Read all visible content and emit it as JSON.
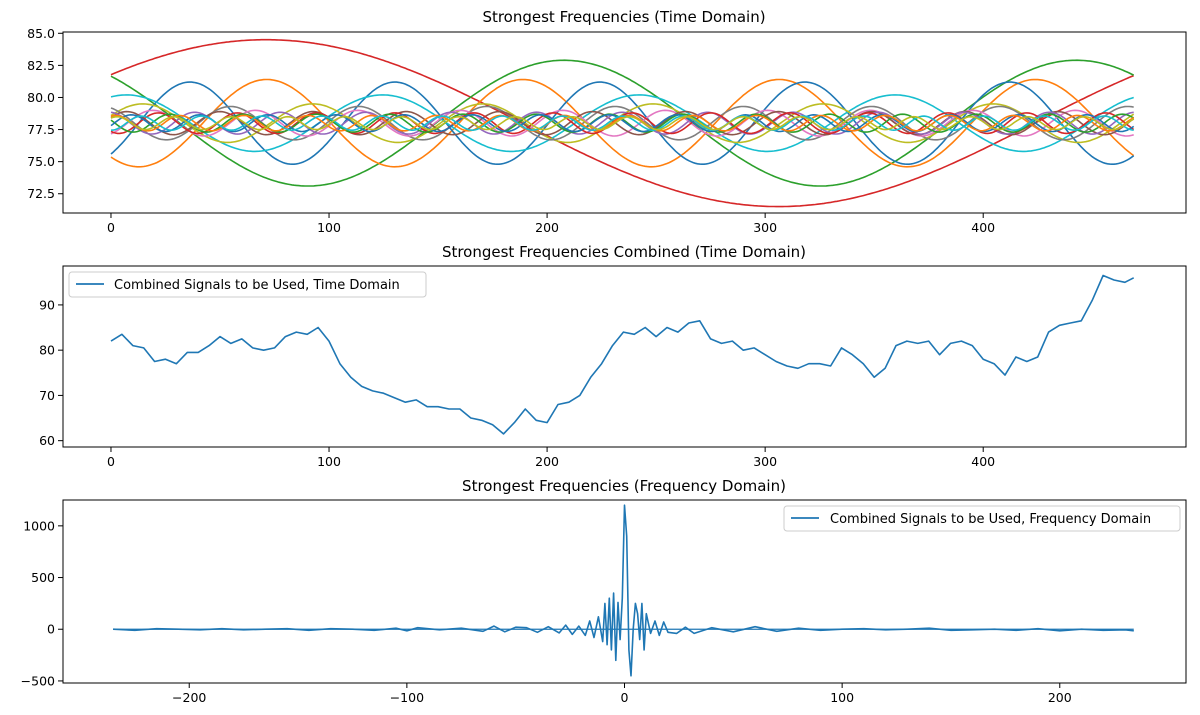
{
  "chart_data": [
    {
      "type": "line",
      "title": "Strongest Frequencies (Time Domain)",
      "xlim": [
        -22,
        493
      ],
      "ylim": [
        71,
        85.1
      ],
      "xticks": [
        0,
        100,
        200,
        300,
        400
      ],
      "yticks": [
        72.5,
        75.0,
        77.5,
        80.0,
        82.5,
        85.0
      ],
      "ytick_labels": [
        "72.5",
        "75.0",
        "77.5",
        "80.0",
        "82.5",
        "85.0"
      ],
      "n_samples": 470,
      "series_colors": [
        "#1f77b4",
        "#ff7f0e",
        "#2ca02c",
        "#d62728",
        "#9467bd",
        "#8c564b",
        "#e377c2",
        "#7f7f7f",
        "#bcbd22",
        "#17becf"
      ],
      "components": [
        {
          "mean": 78.0,
          "amp": 6.5,
          "period": 470,
          "phase": 0.62,
          "color": "#d62728"
        },
        {
          "mean": 78.0,
          "amp": 4.9,
          "period": 235,
          "phase": 2.3,
          "color": "#2ca02c"
        },
        {
          "mean": 78.0,
          "amp": 3.4,
          "period": 117.5,
          "phase": -2.25,
          "color": "#ff7f0e"
        },
        {
          "mean": 78.0,
          "amp": 3.2,
          "period": 94,
          "phase": -0.85,
          "color": "#1f77b4"
        },
        {
          "mean": 78.0,
          "amp": 2.2,
          "period": 117.5,
          "phase": 1.19,
          "color": "#17becf"
        },
        {
          "mean": 78.0,
          "amp": 1.5,
          "period": 78,
          "phase": 0.4,
          "color": "#bcbd22"
        },
        {
          "mean": 78.0,
          "amp": 1.3,
          "period": 58.8,
          "phase": 2.0,
          "color": "#7f7f7f"
        },
        {
          "mean": 78.0,
          "amp": 1.0,
          "period": 47,
          "phase": -1.0,
          "color": "#e377c2"
        },
        {
          "mean": 78.0,
          "amp": 0.9,
          "period": 42.7,
          "phase": 0.5,
          "color": "#8c564b"
        },
        {
          "mean": 78.0,
          "amp": 0.85,
          "period": 39.2,
          "phase": 1.7,
          "color": "#9467bd"
        },
        {
          "mean": 78.0,
          "amp": 0.8,
          "period": 36.2,
          "phase": -2.2,
          "color": "#d62728"
        },
        {
          "mean": 78.0,
          "amp": 0.7,
          "period": 33.6,
          "phase": 2.8,
          "color": "#2ca02c"
        },
        {
          "mean": 78.0,
          "amp": 0.65,
          "period": 31.3,
          "phase": -0.3,
          "color": "#1f77b4"
        },
        {
          "mean": 78.0,
          "amp": 0.6,
          "period": 29.4,
          "phase": 1.1,
          "color": "#ff7f0e"
        },
        {
          "mean": 78.0,
          "amp": 0.55,
          "period": 27.6,
          "phase": -1.6,
          "color": "#17becf"
        },
        {
          "mean": 78.0,
          "amp": 0.5,
          "period": 26.1,
          "phase": 0.9,
          "color": "#bcbd22"
        }
      ]
    },
    {
      "type": "line",
      "title": "Strongest Frequencies Combined (Time Domain)",
      "xlim": [
        -22,
        493
      ],
      "ylim": [
        58.6,
        98.6
      ],
      "xticks": [
        0,
        100,
        200,
        300,
        400
      ],
      "yticks": [
        60,
        70,
        80,
        90
      ],
      "ytick_labels": [
        "60",
        "70",
        "80",
        "90"
      ],
      "legend": "top-left",
      "series": [
        {
          "name": "Combined Signals to be Used, Time Domain",
          "color": "#1f77b4",
          "x": [
            0,
            5,
            10,
            15,
            20,
            25,
            30,
            35,
            40,
            45,
            50,
            55,
            60,
            65,
            70,
            75,
            80,
            85,
            90,
            95,
            100,
            105,
            110,
            115,
            120,
            125,
            130,
            135,
            140,
            145,
            150,
            155,
            160,
            165,
            170,
            175,
            180,
            185,
            190,
            195,
            200,
            205,
            210,
            215,
            220,
            225,
            230,
            235,
            240,
            245,
            250,
            255,
            260,
            265,
            270,
            275,
            280,
            285,
            290,
            295,
            300,
            305,
            310,
            315,
            320,
            325,
            330,
            335,
            340,
            345,
            350,
            355,
            360,
            365,
            370,
            375,
            380,
            385,
            390,
            395,
            400,
            405,
            410,
            415,
            420,
            425,
            430,
            435,
            440,
            445,
            450,
            455,
            460,
            465,
            469
          ],
          "y": [
            82,
            83.5,
            81,
            80.5,
            77.5,
            78,
            77,
            79.5,
            79.5,
            81,
            83,
            81.5,
            82.5,
            80.5,
            80,
            80.5,
            83,
            84,
            83.5,
            85,
            82,
            77,
            74,
            72,
            71,
            70.5,
            69.5,
            68.5,
            69,
            67.5,
            67.5,
            67,
            67,
            65,
            64.5,
            63.5,
            61.5,
            64,
            67,
            64.5,
            64,
            68,
            68.5,
            70,
            74,
            77,
            81,
            84,
            83.5,
            85,
            83,
            85,
            84,
            86,
            86.5,
            82.5,
            81.5,
            82,
            80,
            80.5,
            79,
            77.5,
            76.5,
            76,
            77,
            77,
            76.5,
            80.5,
            79,
            77,
            74,
            76,
            81,
            82,
            81.5,
            82,
            79,
            81.5,
            82,
            81,
            78,
            77,
            74.5,
            78.5,
            77.5,
            78.5,
            84,
            85.5,
            86,
            86.5,
            91,
            96.5,
            95.5,
            95,
            96
          ]
        }
      ]
    },
    {
      "type": "line",
      "title": "Strongest Frequencies (Frequency Domain)",
      "xlim": [
        -258,
        258
      ],
      "ylim": [
        -520,
        1250
      ],
      "xticks": [
        -200,
        -100,
        0,
        100,
        200
      ],
      "xtick_labels": [
        "−200",
        "−100",
        "0",
        "100",
        "200"
      ],
      "yticks": [
        -500,
        0,
        500,
        1000
      ],
      "ytick_labels": [
        "−500",
        "0",
        "500",
        "1000"
      ],
      "legend": "top-right",
      "series": [
        {
          "name": "Combined Signals to be Used, Frequency Domain",
          "color": "#1f77b4",
          "x": [
            -235,
            -225,
            -215,
            -205,
            -195,
            -185,
            -175,
            -165,
            -155,
            -145,
            -135,
            -125,
            -115,
            -105,
            -100,
            -95,
            -85,
            -75,
            -65,
            -60,
            -55,
            -50,
            -45,
            -40,
            -35,
            -30,
            -27,
            -24,
            -21,
            -18,
            -16,
            -14,
            -12,
            -10,
            -9,
            -8,
            -7,
            -6,
            -5,
            -4,
            -3,
            -2,
            -1,
            0,
            1,
            2,
            3,
            4,
            5,
            6,
            7,
            8,
            9,
            10,
            12,
            14,
            16,
            18,
            20,
            24,
            28,
            32,
            40,
            50,
            60,
            70,
            80,
            90,
            100,
            110,
            120,
            130,
            140,
            150,
            160,
            170,
            180,
            190,
            200,
            210,
            220,
            230,
            234
          ],
          "y": [
            0,
            -10,
            5,
            0,
            -5,
            5,
            -5,
            0,
            5,
            -10,
            5,
            0,
            -10,
            10,
            -15,
            15,
            -5,
            10,
            -20,
            30,
            -25,
            20,
            15,
            -30,
            25,
            -35,
            40,
            -50,
            30,
            -60,
            80,
            -80,
            120,
            -120,
            250,
            -150,
            300,
            -200,
            350,
            -300,
            260,
            -100,
            300,
            1200,
            900,
            -200,
            -450,
            0,
            250,
            150,
            -100,
            250,
            -200,
            150,
            -40,
            80,
            -60,
            70,
            -30,
            -40,
            20,
            -40,
            15,
            -25,
            25,
            -20,
            10,
            -10,
            0,
            5,
            -5,
            0,
            10,
            -10,
            -5,
            0,
            -10,
            5,
            -15,
            0,
            -10,
            -5,
            -15
          ]
        }
      ]
    }
  ]
}
